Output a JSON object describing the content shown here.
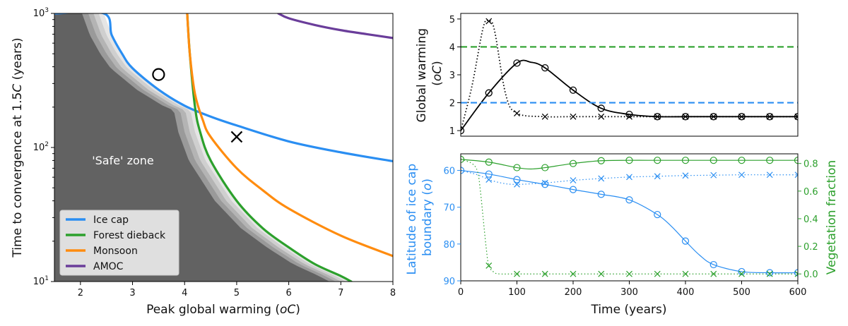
{
  "chart_data": [
    {
      "type": "line",
      "panel": "left",
      "xlabel_prefix": "Peak global warming (",
      "xlabel_unit": "oC",
      "xlabel_suffix": ")",
      "ylabel_prefix": "Time to convergence at 1.5",
      "ylabel_unit": "C",
      "ylabel_suffix": " (years)",
      "xlim": [
        1.5,
        8
      ],
      "ylim": [
        10,
        1000
      ],
      "yscale": "log",
      "xticks": [
        2,
        3,
        4,
        5,
        6,
        7,
        8
      ],
      "yticks": [
        {
          "value": 10,
          "base": "10",
          "exp": "1"
        },
        {
          "value": 100,
          "base": "10",
          "exp": "2"
        },
        {
          "value": 1000,
          "base": "10",
          "exp": "3"
        }
      ],
      "annotation": "'Safe' zone",
      "legend_location": "lower-left",
      "series": [
        {
          "name": "Ice cap",
          "color": "#2a8ef2",
          "x": [
            1.5,
            2.45,
            2.6,
            2.8,
            3.0,
            3.5,
            4.0,
            4.5,
            5.0,
            6.0,
            7.0,
            8.0
          ],
          "y": [
            1000,
            1000,
            690,
            500,
            390,
            270,
            205,
            170,
            146,
            111,
            92,
            79
          ]
        },
        {
          "name": "Forest dieback",
          "color": "#2ca02c",
          "x": [
            4.05,
            4.1,
            4.2,
            4.3,
            4.5,
            5.0,
            5.5,
            6.0,
            6.5,
            7.0,
            7.2
          ],
          "y": [
            1000,
            500,
            200,
            130,
            80,
            40,
            25,
            18,
            13.5,
            11,
            10
          ]
        },
        {
          "name": "Monsoon",
          "color": "#ff8c0f",
          "x": [
            4.05,
            4.1,
            4.2,
            4.35,
            4.5,
            5.0,
            5.5,
            6.0,
            7.0,
            8.0
          ],
          "y": [
            1000,
            500,
            250,
            160,
            120,
            70,
            48,
            35,
            22,
            15.5
          ]
        },
        {
          "name": "AMOC",
          "color": "#6a3d9a",
          "x": [
            5.8,
            6.0,
            6.5,
            7.0,
            7.5,
            8.0
          ],
          "y": [
            1000,
            920,
            820,
            750,
            700,
            655
          ]
        }
      ],
      "markers": [
        {
          "shape": "o",
          "x": 3.5,
          "y": 350
        },
        {
          "shape": "x",
          "x": 5.0,
          "y": 120
        }
      ]
    },
    {
      "type": "line",
      "panel": "top-right",
      "ylabel_line1": "Global warming",
      "ylabel_unit": "oC",
      "xlim": [
        0,
        600
      ],
      "ylim": [
        0.8,
        5.2
      ],
      "yticks": [
        1,
        2,
        3,
        4,
        5
      ],
      "series": [
        {
          "name": "solid (circle markers)",
          "color": "#000000",
          "style": "solid",
          "x": [
            0,
            50,
            100,
            125,
            150,
            200,
            250,
            300,
            350,
            400,
            450,
            500,
            550,
            600
          ],
          "y": [
            1.0,
            2.35,
            3.42,
            3.45,
            3.25,
            2.45,
            1.8,
            1.58,
            1.5,
            1.5,
            1.5,
            1.5,
            1.5,
            1.5
          ],
          "markers_at": [
            0,
            50,
            100,
            150,
            200,
            250,
            300,
            350,
            400,
            450,
            500,
            550,
            600
          ]
        },
        {
          "name": "dotted (x markers)",
          "color": "#000000",
          "style": "dotted",
          "x": [
            0,
            20,
            40,
            50,
            60,
            80,
            100,
            150,
            200,
            300,
            400,
            500,
            600
          ],
          "y": [
            1.0,
            2.6,
            4.7,
            4.92,
            4.6,
            2.3,
            1.62,
            1.5,
            1.5,
            1.5,
            1.5,
            1.5,
            1.5
          ],
          "markers_at": [
            50,
            100,
            150,
            200,
            250,
            300,
            350,
            400,
            450,
            500,
            550,
            600
          ]
        },
        {
          "name": "Forest dieback threshold",
          "color": "#2ca02c",
          "style": "dashed",
          "y": 4.0
        },
        {
          "name": "Ice cap threshold",
          "color": "#2a8ef2",
          "style": "dashed",
          "y": 2.0
        }
      ]
    },
    {
      "type": "line",
      "panel": "bottom-right",
      "xlabel": "Time (years)",
      "xlim": [
        0,
        600
      ],
      "xticks": [
        0,
        100,
        200,
        300,
        400,
        500,
        600
      ],
      "ylabel_left_line1": "Latitude of ice cap",
      "ylabel_left_prefix": "boundary (",
      "ylabel_left_unit": "o",
      "ylabel_left_suffix": ")",
      "ylim_left": [
        55.5,
        90
      ],
      "left_inverted": true,
      "yticks_left": [
        60,
        70,
        80,
        90
      ],
      "ylabel_right": "Vegetation fraction",
      "ylim_right": [
        -0.05,
        0.87
      ],
      "yticks_right": [
        "0.0",
        "0.2",
        "0.4",
        "0.6",
        "0.8"
      ],
      "series": [
        {
          "name": "Ice cap latitude (solid, circles)",
          "axis": "left",
          "color": "#2a8ef2",
          "style": "solid",
          "x": [
            0,
            50,
            100,
            150,
            200,
            250,
            300,
            350,
            375,
            400,
            425,
            450,
            500,
            550,
            600
          ],
          "y": [
            60.0,
            61.0,
            62.5,
            63.8,
            65.2,
            66.5,
            68.0,
            72.0,
            75.2,
            79.2,
            83.0,
            85.6,
            87.5,
            87.8,
            87.8
          ],
          "markers_at": [
            0,
            50,
            100,
            150,
            200,
            250,
            300,
            350,
            400,
            450,
            500,
            550,
            600
          ]
        },
        {
          "name": "Ice cap latitude (dotted, x)",
          "axis": "left",
          "color": "#2a8ef2",
          "style": "dotted",
          "x": [
            0,
            30,
            50,
            75,
            100,
            150,
            200,
            250,
            300,
            350,
            400,
            450,
            500,
            550,
            600
          ],
          "y": [
            60.0,
            61.2,
            62.5,
            63.5,
            63.8,
            63.4,
            62.7,
            62.2,
            61.8,
            61.6,
            61.4,
            61.3,
            61.2,
            61.2,
            61.2
          ],
          "markers_at": [
            50,
            100,
            150,
            200,
            250,
            300,
            350,
            400,
            450,
            500,
            550,
            600
          ]
        },
        {
          "name": "Vegetation fraction (solid, circles)",
          "axis": "right",
          "color": "#2ca02c",
          "style": "solid",
          "x": [
            0,
            50,
            100,
            125,
            150,
            200,
            250,
            300,
            350,
            400,
            450,
            500,
            550,
            600
          ],
          "y": [
            0.83,
            0.81,
            0.77,
            0.76,
            0.77,
            0.8,
            0.82,
            0.823,
            0.823,
            0.823,
            0.823,
            0.823,
            0.823,
            0.823
          ],
          "markers_at": [
            0,
            50,
            100,
            150,
            200,
            250,
            300,
            350,
            400,
            450,
            500,
            550,
            600
          ]
        },
        {
          "name": "Vegetation fraction (dotted, x)",
          "axis": "right",
          "color": "#2ca02c",
          "style": "dotted",
          "x": [
            0,
            20,
            30,
            35,
            40,
            45,
            50,
            60,
            70,
            100,
            200,
            300,
            400,
            500,
            600
          ],
          "y": [
            0.83,
            0.8,
            0.74,
            0.6,
            0.4,
            0.2,
            0.06,
            0.01,
            0.0,
            0.0,
            0.0,
            0.0,
            0.0,
            0.0,
            0.0
          ],
          "markers_at": [
            50,
            100,
            150,
            200,
            250,
            300,
            350,
            400,
            450,
            500,
            550,
            600
          ]
        }
      ]
    }
  ]
}
